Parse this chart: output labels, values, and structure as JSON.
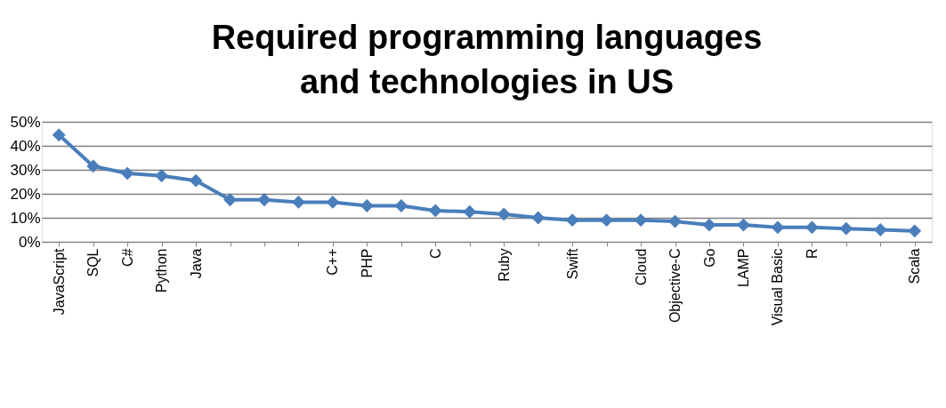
{
  "chart_data": {
    "type": "line",
    "title": "Required programming languages and technologies in US",
    "categories": [
      "JavaScript",
      "SQL",
      "C#",
      "Python",
      "Java",
      null,
      null,
      null,
      "C++",
      "PHP",
      null,
      "C",
      null,
      "Ruby",
      null,
      "Swift",
      null,
      "Cloud",
      "Objective-C",
      "Go",
      "LAMP",
      "Visual Basic",
      "R",
      null,
      null,
      "Scala"
    ],
    "series": [
      {
        "color": "#4a7ebb",
        "values": [
          44.5,
          31.5,
          28.5,
          27.5,
          25.5,
          17.5,
          17.5,
          16.5,
          16.5,
          15,
          15,
          13,
          12.5,
          11.5,
          10,
          9,
          9,
          9,
          8.5,
          7,
          7,
          6,
          6,
          5.5,
          5,
          4.5
        ]
      }
    ],
    "ylim": [
      0,
      50
    ],
    "yticks": [
      {
        "value": 0,
        "label": "0%"
      },
      {
        "value": 10,
        "label": "10%"
      },
      {
        "value": 20,
        "label": "20%"
      },
      {
        "value": 30,
        "label": "30%"
      },
      {
        "value": 40,
        "label": "40%"
      },
      {
        "value": 50,
        "label": "50%"
      }
    ],
    "grid": "y",
    "marker": "diamond",
    "line_style": "solid"
  }
}
